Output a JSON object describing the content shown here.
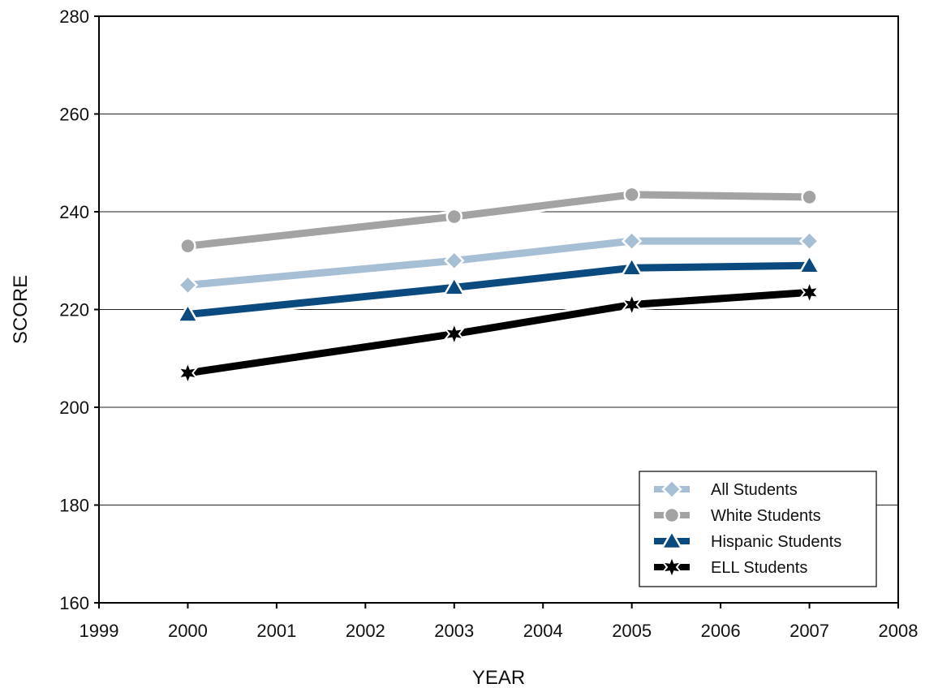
{
  "chart_data": {
    "type": "line",
    "x": [
      2000,
      2003,
      2005,
      2007
    ],
    "series": [
      {
        "name": "All Students",
        "values": [
          225,
          230,
          234,
          234
        ],
        "color": "#a7bfd4",
        "marker": "diamond"
      },
      {
        "name": "White Students",
        "values": [
          233,
          239,
          243.5,
          243
        ],
        "color": "#a3a3a3",
        "marker": "circle"
      },
      {
        "name": "Hispanic Students",
        "values": [
          219,
          224.5,
          228.5,
          229
        ],
        "color": "#0a4a7e",
        "marker": "triangle"
      },
      {
        "name": "ELL Students",
        "values": [
          207,
          215,
          221,
          223.5
        ],
        "color": "#000000",
        "marker": "star"
      }
    ],
    "xlabel": "YEAR",
    "ylabel": "SCORE",
    "xlim": [
      1999,
      2008
    ],
    "ylim": [
      160,
      280
    ],
    "xticks": [
      "1999",
      "2000",
      "2001",
      "2002",
      "2003",
      "2004",
      "2005",
      "2006",
      "2007",
      "2008"
    ],
    "yticks": [
      "160",
      "180",
      "200",
      "220",
      "240",
      "260",
      "280"
    ],
    "grid": "horizontal",
    "legend_position": "bottom-right"
  }
}
